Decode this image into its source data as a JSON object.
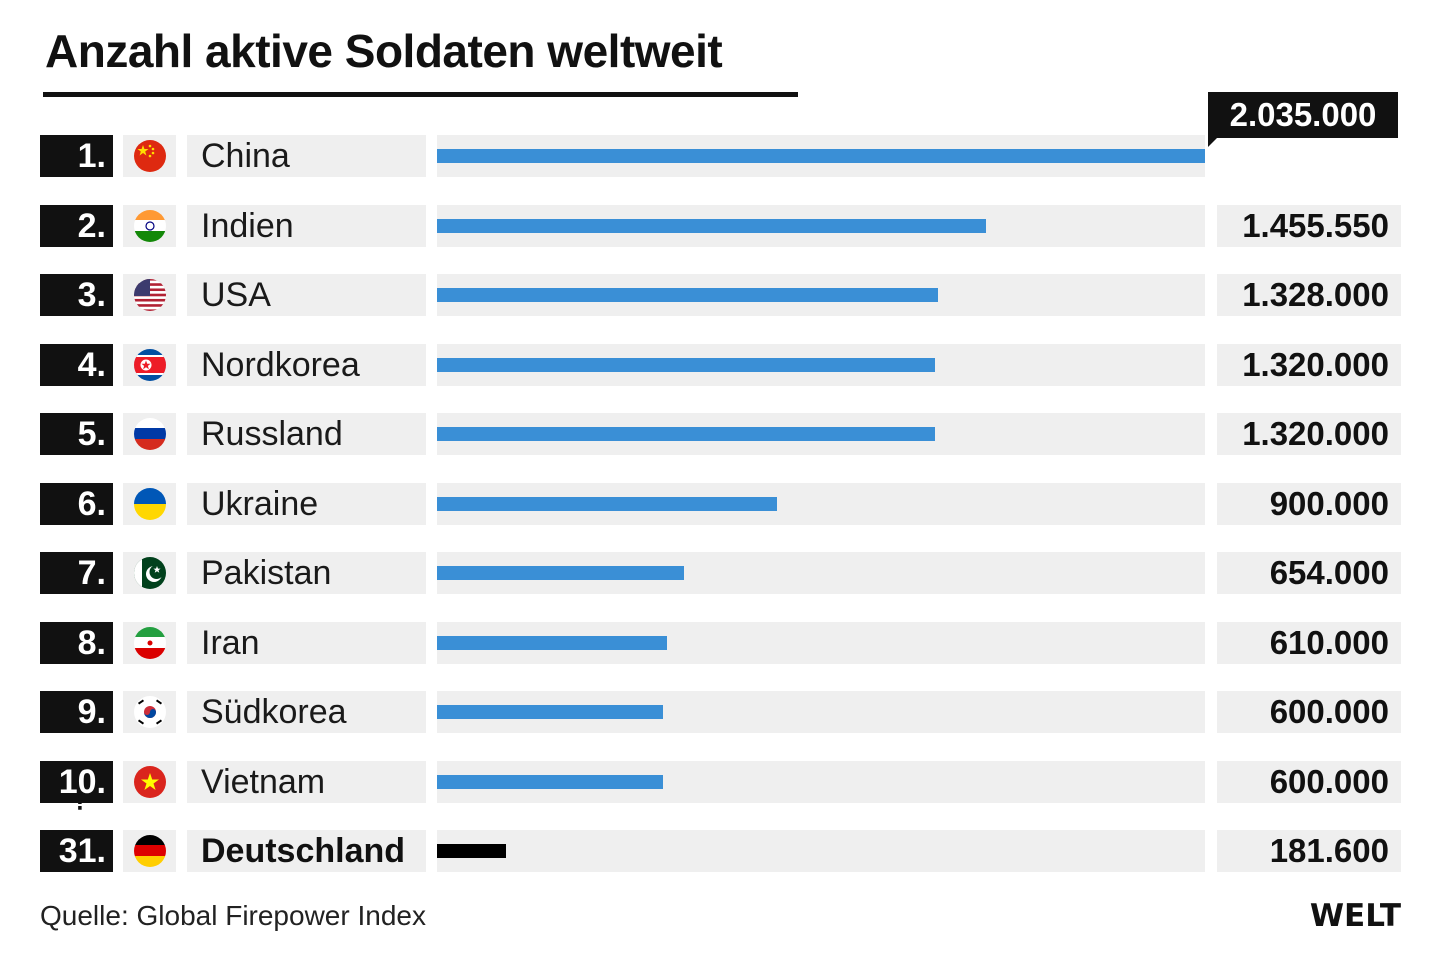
{
  "title": "Anzahl aktive Soldaten weltweit",
  "source": "Quelle: Global Firepower Index",
  "logo": "WELT",
  "ellipsis": "⋮",
  "colors": {
    "bar": "#3a8fd6",
    "highlight_bar": "#000000",
    "row_bg": "#efefef",
    "rank_bg": "#111111"
  },
  "chart_data": {
    "type": "bar",
    "orientation": "horizontal",
    "title": "Anzahl aktive Soldaten weltweit",
    "categories": [
      "China",
      "Indien",
      "USA",
      "Nordkorea",
      "Russland",
      "Ukraine",
      "Pakistan",
      "Iran",
      "Südkorea",
      "Vietnam",
      "Deutschland"
    ],
    "ranks": [
      "1.",
      "2.",
      "3.",
      "4.",
      "5.",
      "6.",
      "7.",
      "8.",
      "9.",
      "10.",
      "31."
    ],
    "values": [
      2035000,
      1455550,
      1328000,
      1320000,
      1320000,
      900000,
      654000,
      610000,
      600000,
      600000,
      181600
    ],
    "value_labels": [
      "2.035.000",
      "1.455.550",
      "1.328.000",
      "1.320.000",
      "1.320.000",
      "900.000",
      "654.000",
      "610.000",
      "600.000",
      "600.000",
      "181.600"
    ],
    "flags": [
      "china-flag-icon",
      "india-flag-icon",
      "usa-flag-icon",
      "north-korea-flag-icon",
      "russia-flag-icon",
      "ukraine-flag-icon",
      "pakistan-flag-icon",
      "iran-flag-icon",
      "south-korea-flag-icon",
      "vietnam-flag-icon",
      "germany-flag-icon"
    ],
    "highlight": "Deutschland",
    "xlim": [
      0,
      2035000
    ],
    "grid": false,
    "legend": "none"
  }
}
